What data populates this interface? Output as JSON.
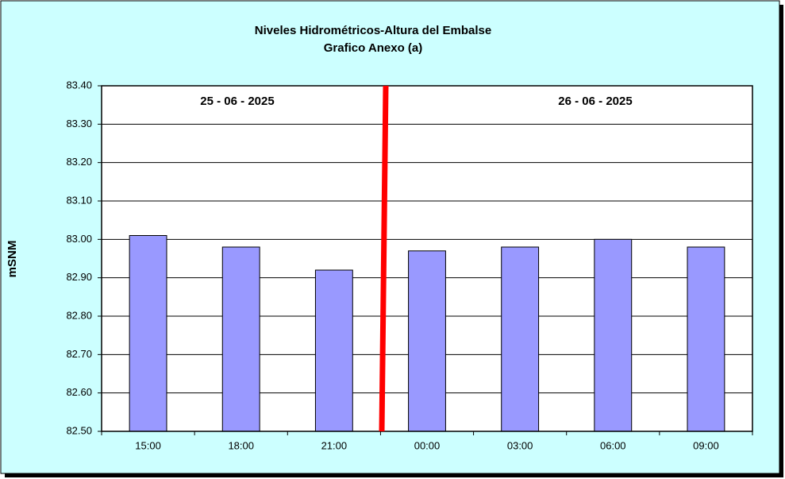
{
  "chart_data": {
    "type": "bar",
    "title": "Niveles Hidrométricos-Altura del Embalse",
    "subtitle": "Grafico Anexo (a)",
    "y_label": "mSNM",
    "annotations": [
      "25 - 06 - 2025",
      "26 - 06 - 2025"
    ],
    "categories": [
      "15:00",
      "18:00",
      "21:00",
      "00:00",
      "03:00",
      "06:00",
      "09:00"
    ],
    "values": [
      83.01,
      82.98,
      82.92,
      82.97,
      82.98,
      83.0,
      82.98
    ],
    "color": "#9999ff",
    "ylim": [
      82.5,
      83.4
    ],
    "yticks": [
      {
        "value": 82.5,
        "label": "82.50"
      },
      {
        "value": 82.6,
        "label": "82.60"
      },
      {
        "value": 82.7,
        "label": "82.70"
      },
      {
        "value": 82.8,
        "label": "82.80"
      },
      {
        "value": 82.9,
        "label": "82.90"
      },
      {
        "value": 83.0,
        "label": "83.00"
      },
      {
        "value": 83.1,
        "label": "83.10"
      },
      {
        "value": 83.2,
        "label": "83.20"
      },
      {
        "value": 83.3,
        "label": "83.30"
      },
      {
        "value": 83.4,
        "label": "83.40"
      }
    ],
    "grid": true
  }
}
